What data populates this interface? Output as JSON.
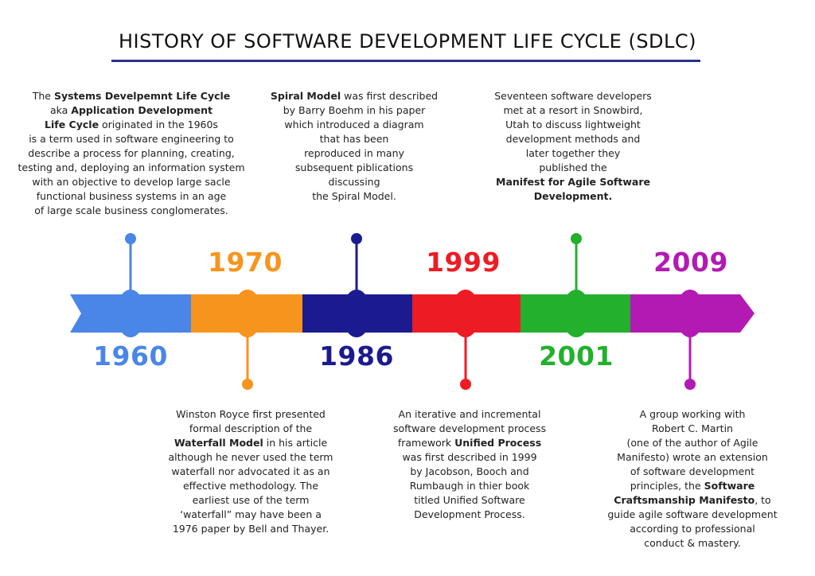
{
  "title": "HISTORY OF SOFTWARE DEVELOPMENT LIFE CYCLE (SDLC)",
  "events": [
    {
      "year": "1960",
      "color": "#4a86e8",
      "text": [
        [
          "The ",
          {
            "b": "Systems Develpemnt Life Cycle"
          }
        ],
        [
          "aka ",
          {
            "b": "Application Development"
          }
        ],
        [
          {
            "b": "Life Cycle"
          },
          " originated in the 1960s"
        ],
        [
          "is a term used in software engineering to"
        ],
        [
          "describe a process for planning, creating,"
        ],
        [
          "testing and, deploying an information system"
        ],
        [
          "with an objective to develop large sacle"
        ],
        [
          "functional business systems in an age"
        ],
        [
          "of large scale business conglomerates."
        ]
      ]
    },
    {
      "year": "1970",
      "color": "#f7941d",
      "text": [
        [
          "Winston Royce first presented"
        ],
        [
          "formal description of the"
        ],
        [
          {
            "b": "Waterfall Model"
          },
          " in his article"
        ],
        [
          "although he never used the term"
        ],
        [
          "waterfall nor advocated it as an"
        ],
        [
          "effective methodology. The"
        ],
        [
          "earliest use of the term"
        ],
        [
          "‘waterfall” may have been a"
        ],
        [
          "1976 paper by Bell and Thayer."
        ]
      ]
    },
    {
      "year": "1986",
      "color": "#1b1b8f",
      "text": [
        [
          {
            "b": "Spiral Model"
          },
          " was first described"
        ],
        [
          "by Barry Boehm in his paper"
        ],
        [
          "which introduced a diagram"
        ],
        [
          "that has been"
        ],
        [
          "reproduced in many"
        ],
        [
          "subsequent piblications"
        ],
        [
          "discussing"
        ],
        [
          "the Spiral Model."
        ]
      ]
    },
    {
      "year": "1999",
      "color": "#ed1c24",
      "text": [
        [
          "An iterative and incremental"
        ],
        [
          "software development process"
        ],
        [
          "framework ",
          {
            "b": "Unified Process"
          }
        ],
        [
          "was first described in 1999"
        ],
        [
          "by Jacobson, Booch and"
        ],
        [
          "Rumbaugh in thier book"
        ],
        [
          "titled Unified Software"
        ],
        [
          "Development Process."
        ]
      ]
    },
    {
      "year": "2001",
      "color": "#22b02d",
      "text": [
        [
          "Seventeen software developers"
        ],
        [
          "met at a resort in Snowbird,"
        ],
        [
          "Utah to discuss lightweight"
        ],
        [
          "development methods and"
        ],
        [
          "later together they"
        ],
        [
          "published the"
        ],
        [
          {
            "b": "Manifest for Agile Software"
          }
        ],
        [
          {
            "b": "Development."
          }
        ]
      ]
    },
    {
      "year": "2009",
      "color": "#b31ab3",
      "text": [
        [
          "A group working with"
        ],
        [
          "Robert C. Martin"
        ],
        [
          "(one of the author of Agile"
        ],
        [
          "Manifesto) wrote an extension"
        ],
        [
          "of software development"
        ],
        [
          "principles, the ",
          {
            "b": "Software"
          }
        ],
        [
          {
            "b": "Craftsmanship Manifesto"
          },
          ", to"
        ],
        [
          "guide agile software development"
        ],
        [
          "according to professional"
        ],
        [
          "conduct & mastery."
        ]
      ]
    }
  ]
}
